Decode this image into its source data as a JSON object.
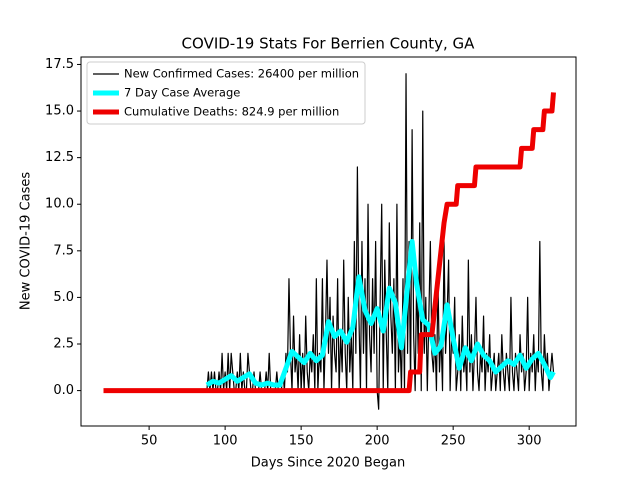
{
  "chart_data": {
    "type": "line",
    "title": "COVID-19 Stats For Berrien County, GA",
    "xlabel": "Days Since 2020 Began",
    "ylabel": "New COVID-19 Cases",
    "xlim": [
      5.2,
      330.8
    ],
    "ylim": [
      -1.9,
      17.9
    ],
    "xticks": [
      50,
      100,
      150,
      200,
      250,
      300
    ],
    "yticks": [
      {
        "value": 0,
        "label": "0.0"
      },
      2.5,
      {
        "value": 5,
        "label": "5.0"
      },
      7.5,
      {
        "value": 10,
        "label": "10.0"
      },
      12.5,
      {
        "value": 15,
        "label": "15.0"
      },
      17.5
    ],
    "legend": "upper left",
    "series": [
      {
        "name": "New Confirmed Cases: 26400 per million",
        "color": "#000000",
        "x": [
          88,
          89,
          90,
          91,
          92,
          93,
          94,
          95,
          96,
          97,
          98,
          99,
          100,
          101,
          102,
          103,
          104,
          105,
          106,
          107,
          108,
          109,
          110,
          111,
          112,
          113,
          114,
          115,
          116,
          117,
          118,
          119,
          120,
          121,
          122,
          123,
          124,
          125,
          126,
          127,
          128,
          129,
          130,
          131,
          132,
          133,
          134,
          135,
          136,
          137,
          138,
          139,
          140,
          141,
          142,
          143,
          144,
          145,
          146,
          147,
          148,
          149,
          150,
          151,
          152,
          153,
          154,
          155,
          156,
          157,
          158,
          159,
          160,
          161,
          162,
          163,
          164,
          165,
          166,
          167,
          168,
          169,
          170,
          171,
          172,
          173,
          174,
          175,
          176,
          177,
          178,
          179,
          180,
          181,
          182,
          183,
          184,
          185,
          186,
          187,
          188,
          189,
          190,
          191,
          192,
          193,
          194,
          195,
          196,
          197,
          198,
          199,
          200,
          201,
          202,
          203,
          204,
          205,
          206,
          207,
          208,
          209,
          210,
          211,
          212,
          213,
          214,
          215,
          216,
          217,
          218,
          219,
          220,
          221,
          222,
          223,
          224,
          225,
          226,
          227,
          228,
          229,
          230,
          231,
          232,
          233,
          234,
          235,
          236,
          237,
          238,
          239,
          240,
          241,
          242,
          243,
          244,
          245,
          246,
          247,
          248,
          249,
          250,
          251,
          252,
          253,
          254,
          255,
          256,
          257,
          258,
          259,
          260,
          261,
          262,
          263,
          264,
          265,
          266,
          267,
          268,
          269,
          270,
          271,
          272,
          273,
          274,
          275,
          276,
          277,
          278,
          279,
          280,
          281,
          282,
          283,
          284,
          285,
          286,
          287,
          288,
          289,
          290,
          291,
          292,
          293,
          294,
          295,
          296,
          297,
          298,
          299,
          300,
          301,
          302,
          303,
          304,
          305,
          306,
          307,
          308,
          309,
          310,
          311,
          312,
          313,
          314,
          315,
          316
        ],
        "values": [
          0,
          1,
          0,
          1,
          0,
          1,
          0,
          0,
          1,
          0,
          2,
          0,
          1,
          0,
          2,
          0,
          2,
          1,
          0,
          0,
          1,
          0,
          2,
          0,
          1,
          0,
          0,
          2,
          1,
          0,
          0,
          1,
          0,
          0,
          0,
          1,
          0,
          0,
          0,
          1,
          0,
          2,
          0,
          0,
          0,
          0,
          1,
          0,
          0,
          0,
          1,
          0,
          2,
          1,
          6,
          2,
          0,
          4,
          1,
          2,
          0,
          3,
          0,
          2,
          0,
          4,
          1,
          0,
          2,
          1,
          3,
          0,
          6,
          0,
          2,
          1,
          6,
          0,
          3,
          7,
          2,
          5,
          0,
          4,
          2,
          1,
          6,
          0,
          3,
          1,
          7,
          2,
          0,
          5,
          1,
          3,
          0,
          8,
          2,
          12,
          4,
          0,
          8,
          2,
          6,
          0,
          10,
          3,
          1,
          6,
          2,
          8,
          0,
          -1,
          5,
          10,
          0,
          7,
          3,
          0,
          9,
          4,
          2,
          6,
          0,
          10,
          1,
          3,
          0,
          6,
          0,
          17,
          2,
          8,
          0,
          14,
          3,
          0,
          6,
          2,
          9,
          0,
          15,
          2,
          5,
          0,
          4,
          8,
          2,
          1,
          3,
          0,
          6,
          1,
          3,
          0,
          8,
          2,
          4,
          7,
          0,
          3,
          2,
          5,
          0,
          1,
          3,
          0,
          4,
          1,
          2,
          0,
          7,
          1,
          3,
          0,
          2,
          5,
          1,
          0,
          2,
          1,
          4,
          0,
          2,
          1,
          3,
          0,
          1,
          2,
          0,
          1,
          2,
          0,
          3,
          1,
          0,
          2,
          1,
          0,
          5,
          1,
          0,
          2,
          1,
          0,
          3,
          1,
          2,
          0,
          1,
          5,
          0,
          2,
          1,
          3,
          0,
          2,
          1,
          8,
          1,
          0,
          3,
          1,
          2,
          0,
          1,
          2,
          1
        ]
      },
      {
        "name": "7 Day Case Average",
        "color": "#00ffff",
        "x": [
          88,
          92,
          96,
          100,
          104,
          108,
          112,
          116,
          120,
          124,
          128,
          132,
          136,
          140,
          144,
          148,
          152,
          156,
          160,
          164,
          168,
          172,
          176,
          180,
          184,
          188,
          192,
          196,
          200,
          204,
          208,
          212,
          216,
          220,
          223,
          226,
          230,
          234,
          238,
          242,
          246,
          250,
          254,
          258,
          262,
          266,
          270,
          274,
          278,
          282,
          286,
          290,
          294,
          298,
          302,
          306,
          310,
          314,
          316
        ],
        "values": [
          0.3,
          0.5,
          0.4,
          0.6,
          0.8,
          0.5,
          0.7,
          0.9,
          0.4,
          0.3,
          0.4,
          0.3,
          0.3,
          1.2,
          2.1,
          1.8,
          1.5,
          2.0,
          1.6,
          1.9,
          3.7,
          2.9,
          3.2,
          2.6,
          3.4,
          6.1,
          4.3,
          3.6,
          4.4,
          3.2,
          5.5,
          4.7,
          2.3,
          5.6,
          8.0,
          5.7,
          3.8,
          3.5,
          2.0,
          2.4,
          4.6,
          2.8,
          1.2,
          2.3,
          1.6,
          2.5,
          1.9,
          1.6,
          1.0,
          1.3,
          1.6,
          1.4,
          1.9,
          1.2,
          1.7,
          2.0,
          1.4,
          0.7,
          1.0
        ]
      },
      {
        "name": "Cumulative Deaths: 824.9 per million",
        "color": "#ee0000",
        "x": [
          20,
          221,
          222,
          228,
          229,
          235,
          236,
          240,
          244,
          246,
          247,
          252,
          253,
          264,
          265,
          294,
          295,
          302,
          303,
          309,
          310,
          315,
          316
        ],
        "values": [
          0,
          0,
          1,
          1,
          3,
          3,
          3,
          6,
          9,
          10,
          10,
          10,
          11,
          11,
          12,
          12,
          13,
          13,
          14,
          14,
          15,
          15,
          16
        ]
      }
    ]
  }
}
